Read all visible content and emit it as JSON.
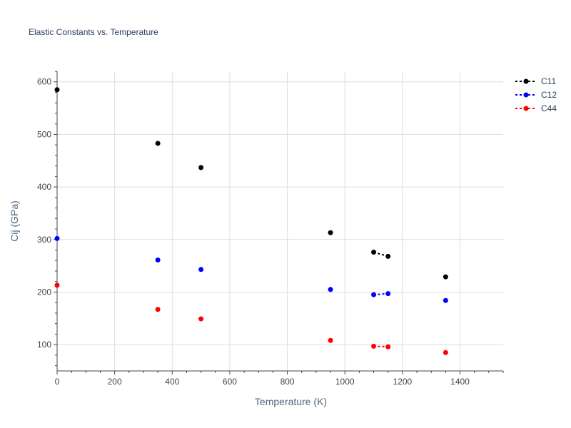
{
  "chart_data": {
    "type": "scatter",
    "title": "Elastic Constants vs. Temperature",
    "xlabel": "Temperature (K)",
    "ylabel": "Cij (GPa)",
    "xlim": [
      0,
      1550
    ],
    "ylim": [
      50,
      620
    ],
    "xticks": [
      0,
      200,
      400,
      600,
      800,
      1000,
      1200,
      1400
    ],
    "yticks": [
      100,
      200,
      300,
      400,
      500,
      600
    ],
    "grid": true,
    "legend_position": "top-right",
    "series": [
      {
        "name": "C11",
        "color": "#000000",
        "x": [
          0,
          350,
          500,
          950,
          1100,
          1150,
          1350
        ],
        "y": [
          585,
          483,
          437,
          313,
          276,
          268,
          229
        ]
      },
      {
        "name": "C12",
        "color": "#0000ff",
        "x": [
          0,
          350,
          500,
          950,
          1100,
          1150,
          1350
        ],
        "y": [
          302,
          261,
          243,
          205,
          195,
          197,
          184
        ]
      },
      {
        "name": "C44",
        "color": "#ff0000",
        "x": [
          0,
          350,
          500,
          950,
          1100,
          1150,
          1350
        ],
        "y": [
          213,
          167,
          149,
          108,
          97,
          96,
          85
        ]
      }
    ]
  }
}
